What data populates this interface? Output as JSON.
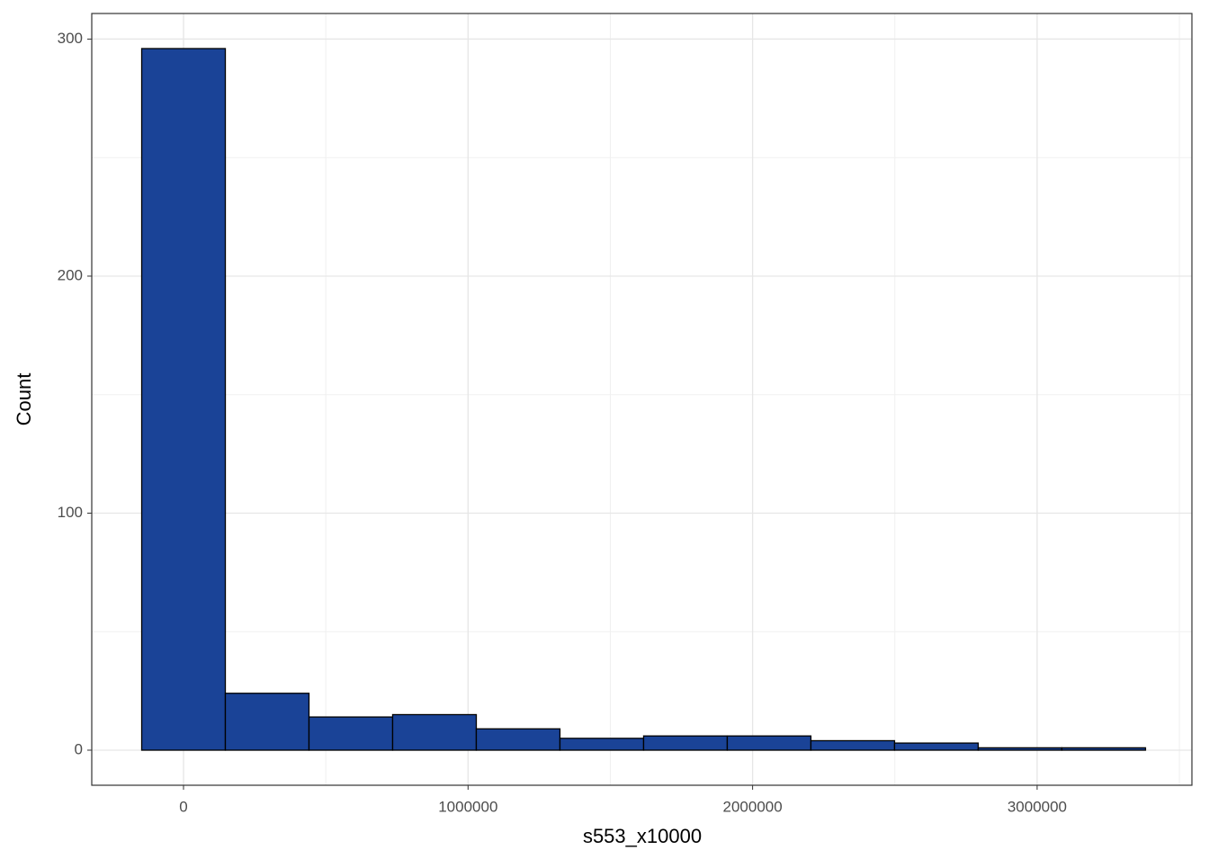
{
  "chart_data": {
    "type": "histogram",
    "x_label": "s553_x10000",
    "y_label": "Count",
    "bins": [
      -147000,
      147000,
      441000,
      735000,
      1029000,
      1323000,
      1617000,
      1911000,
      2205000,
      2499000,
      2793000,
      3087000,
      3381000
    ],
    "values": [
      296,
      24,
      14,
      15,
      9,
      5,
      6,
      6,
      4,
      3,
      1,
      1
    ],
    "color": "#1a4397",
    "edge_color": "#000000",
    "xlim": [
      -322500,
      3544000
    ],
    "ylim": [
      -14.8,
      310.8
    ],
    "xticks": [
      0,
      1000000,
      2000000,
      3000000
    ],
    "yticks": [
      0,
      100,
      200,
      300
    ],
    "x_minor_ticks": [
      500000,
      1500000,
      2500000,
      3500000
    ],
    "y_minor_ticks": [
      50,
      150,
      250
    ],
    "grid": true
  }
}
